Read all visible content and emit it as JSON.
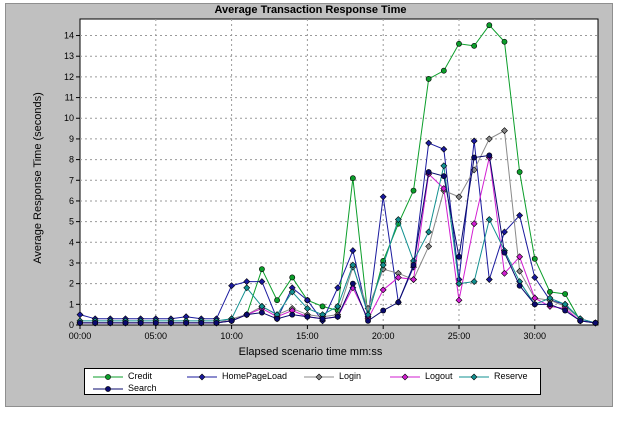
{
  "chart_data": {
    "type": "line",
    "title": "Average Transaction Response Time",
    "xlabel": "Elapsed scenario time mm:ss",
    "ylabel": "Average Response Time (seconds)",
    "x_ticks": [
      "00:00",
      "05:00",
      "10:00",
      "15:00",
      "20:00",
      "25:00",
      "30:00"
    ],
    "x_tick_values": [
      0,
      5,
      10,
      15,
      20,
      25,
      30
    ],
    "xlim": [
      0,
      34.17
    ],
    "ylim": [
      0,
      14.8
    ],
    "y_ticks": [
      0,
      1,
      2,
      3,
      4,
      5,
      6,
      7,
      8,
      9,
      10,
      11,
      12,
      13,
      14
    ],
    "grid": true,
    "legend_position": "bottom",
    "x": [
      0,
      1,
      2,
      3,
      4,
      5,
      6,
      7,
      8,
      9,
      10,
      11,
      12,
      13,
      14,
      15,
      16,
      17,
      18,
      19,
      20,
      21,
      22,
      23,
      24,
      25,
      26,
      27,
      28,
      29,
      30,
      31,
      32,
      33,
      34
    ],
    "series": [
      {
        "name": "Credit",
        "color": "#0b9e2a",
        "marker": "circle",
        "values": [
          0.1,
          0.1,
          0.1,
          0.1,
          0.1,
          0.1,
          0.1,
          0.1,
          0.1,
          0.1,
          0.2,
          0.5,
          2.7,
          1.2,
          2.3,
          1.2,
          0.9,
          0.7,
          7.1,
          0.4,
          3.1,
          4.9,
          6.5,
          11.9,
          12.3,
          13.6,
          13.5,
          14.5,
          13.7,
          7.4,
          3.2,
          1.6,
          1.5,
          0.2,
          0.1
        ]
      },
      {
        "name": "HomePageLoad",
        "color": "#1a1a9e",
        "marker": "diamond",
        "values": [
          0.5,
          0.3,
          0.3,
          0.3,
          0.3,
          0.3,
          0.3,
          0.4,
          0.3,
          0.3,
          1.9,
          2.1,
          2.1,
          0.3,
          1.8,
          1.2,
          0.2,
          1.8,
          3.6,
          0.4,
          6.2,
          1.1,
          2.8,
          8.8,
          8.5,
          2.2,
          8.9,
          2.2,
          4.5,
          5.3,
          2.3,
          1.2,
          1.0,
          0.3,
          0.1
        ]
      },
      {
        "name": "Login",
        "color": "#8a8a8a",
        "marker": "diamond",
        "values": [
          0.1,
          0.1,
          0.1,
          0.1,
          0.1,
          0.1,
          0.1,
          0.1,
          0.1,
          0.1,
          0.3,
          0.5,
          0.9,
          0.5,
          0.8,
          0.5,
          0.4,
          0.5,
          2.8,
          0.8,
          2.7,
          2.5,
          2.2,
          3.8,
          6.5,
          6.2,
          7.5,
          9.0,
          9.4,
          2.6,
          1.3,
          1.2,
          0.9,
          0.3,
          0.1
        ]
      },
      {
        "name": "Logout",
        "color": "#d21ed2",
        "marker": "diamond",
        "values": [
          0.1,
          0.1,
          0.1,
          0.1,
          0.1,
          0.1,
          0.1,
          0.1,
          0.1,
          0.1,
          0.2,
          0.5,
          0.8,
          0.4,
          0.7,
          0.4,
          0.3,
          0.4,
          1.8,
          0.3,
          1.7,
          2.3,
          2.2,
          7.3,
          6.6,
          1.2,
          4.9,
          8.1,
          2.5,
          3.3,
          1.3,
          0.9,
          0.8,
          0.2,
          0.1
        ]
      },
      {
        "name": "Reserve",
        "color": "#129090",
        "marker": "diamond",
        "values": [
          0.2,
          0.2,
          0.2,
          0.2,
          0.2,
          0.2,
          0.2,
          0.2,
          0.2,
          0.2,
          0.3,
          1.8,
          0.9,
          0.5,
          1.6,
          0.8,
          0.5,
          0.9,
          2.9,
          0.5,
          2.9,
          5.1,
          3.1,
          4.5,
          7.7,
          2.0,
          2.1,
          5.1,
          3.6,
          2.1,
          1.0,
          1.3,
          1.0,
          0.3,
          0.1
        ]
      },
      {
        "name": "Search",
        "color": "#0a0a6e",
        "marker": "circle",
        "values": [
          0.1,
          0.1,
          0.1,
          0.1,
          0.1,
          0.1,
          0.1,
          0.1,
          0.1,
          0.1,
          0.2,
          0.5,
          0.6,
          0.3,
          0.5,
          0.4,
          0.3,
          0.4,
          2.0,
          0.2,
          0.7,
          1.1,
          2.9,
          7.4,
          7.2,
          3.3,
          8.1,
          8.2,
          3.5,
          1.9,
          1.0,
          1.0,
          0.7,
          0.2,
          0.1
        ]
      }
    ]
  }
}
